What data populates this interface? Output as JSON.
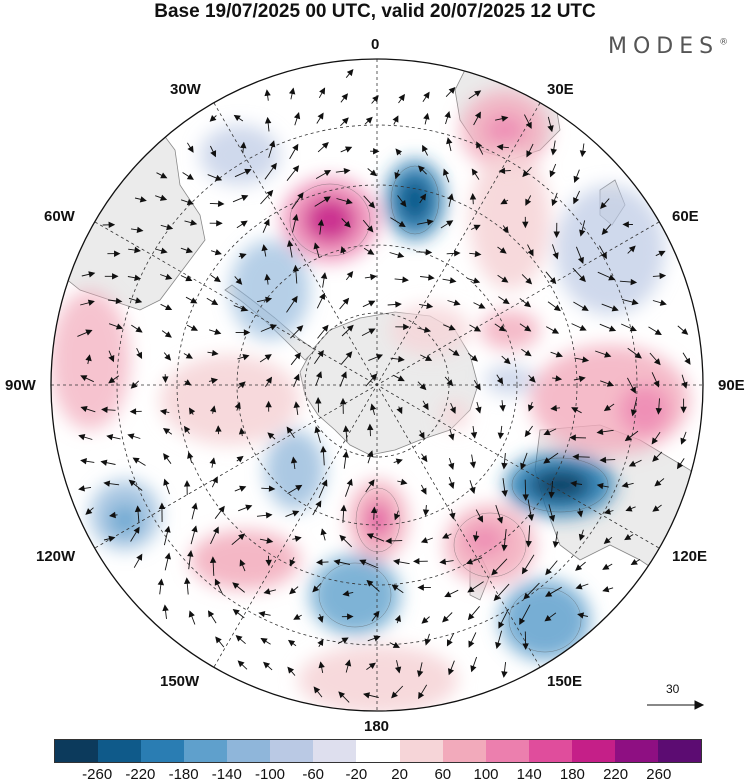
{
  "header": {
    "title": "Base 19/07/2025 00 UTC, valid 20/07/2025 12 UTC",
    "brand": "MODES",
    "brand_mark": "®"
  },
  "map": {
    "projection": "south polar stereographic",
    "labels": {
      "lon_0": "0",
      "lon_30w": "30W",
      "lon_30e": "30E",
      "lon_60w": "60W",
      "lon_60e": "60E",
      "lon_90w": "90W",
      "lon_90e": "90E",
      "lon_120w": "120W",
      "lon_120e": "120E",
      "lon_150w": "150W",
      "lon_150e": "150E",
      "lon_180": "180"
    },
    "reference_vector": "30"
  },
  "colorbar": {
    "ticks": [
      "-260",
      "-220",
      "-180",
      "-140",
      "-100",
      "-60",
      "-20",
      "20",
      "60",
      "100",
      "140",
      "180",
      "220",
      "260"
    ],
    "colors": [
      "#0c3a5c",
      "#0f5a8a",
      "#2a7db3",
      "#5fa0cc",
      "#8fb6da",
      "#bac9e4",
      "#dedfee",
      "#ffffff",
      "#f6d5d8",
      "#f2aabb",
      "#ec7fae",
      "#e04d9c",
      "#c51f88",
      "#8e0f82",
      "#5c0c72"
    ]
  }
}
